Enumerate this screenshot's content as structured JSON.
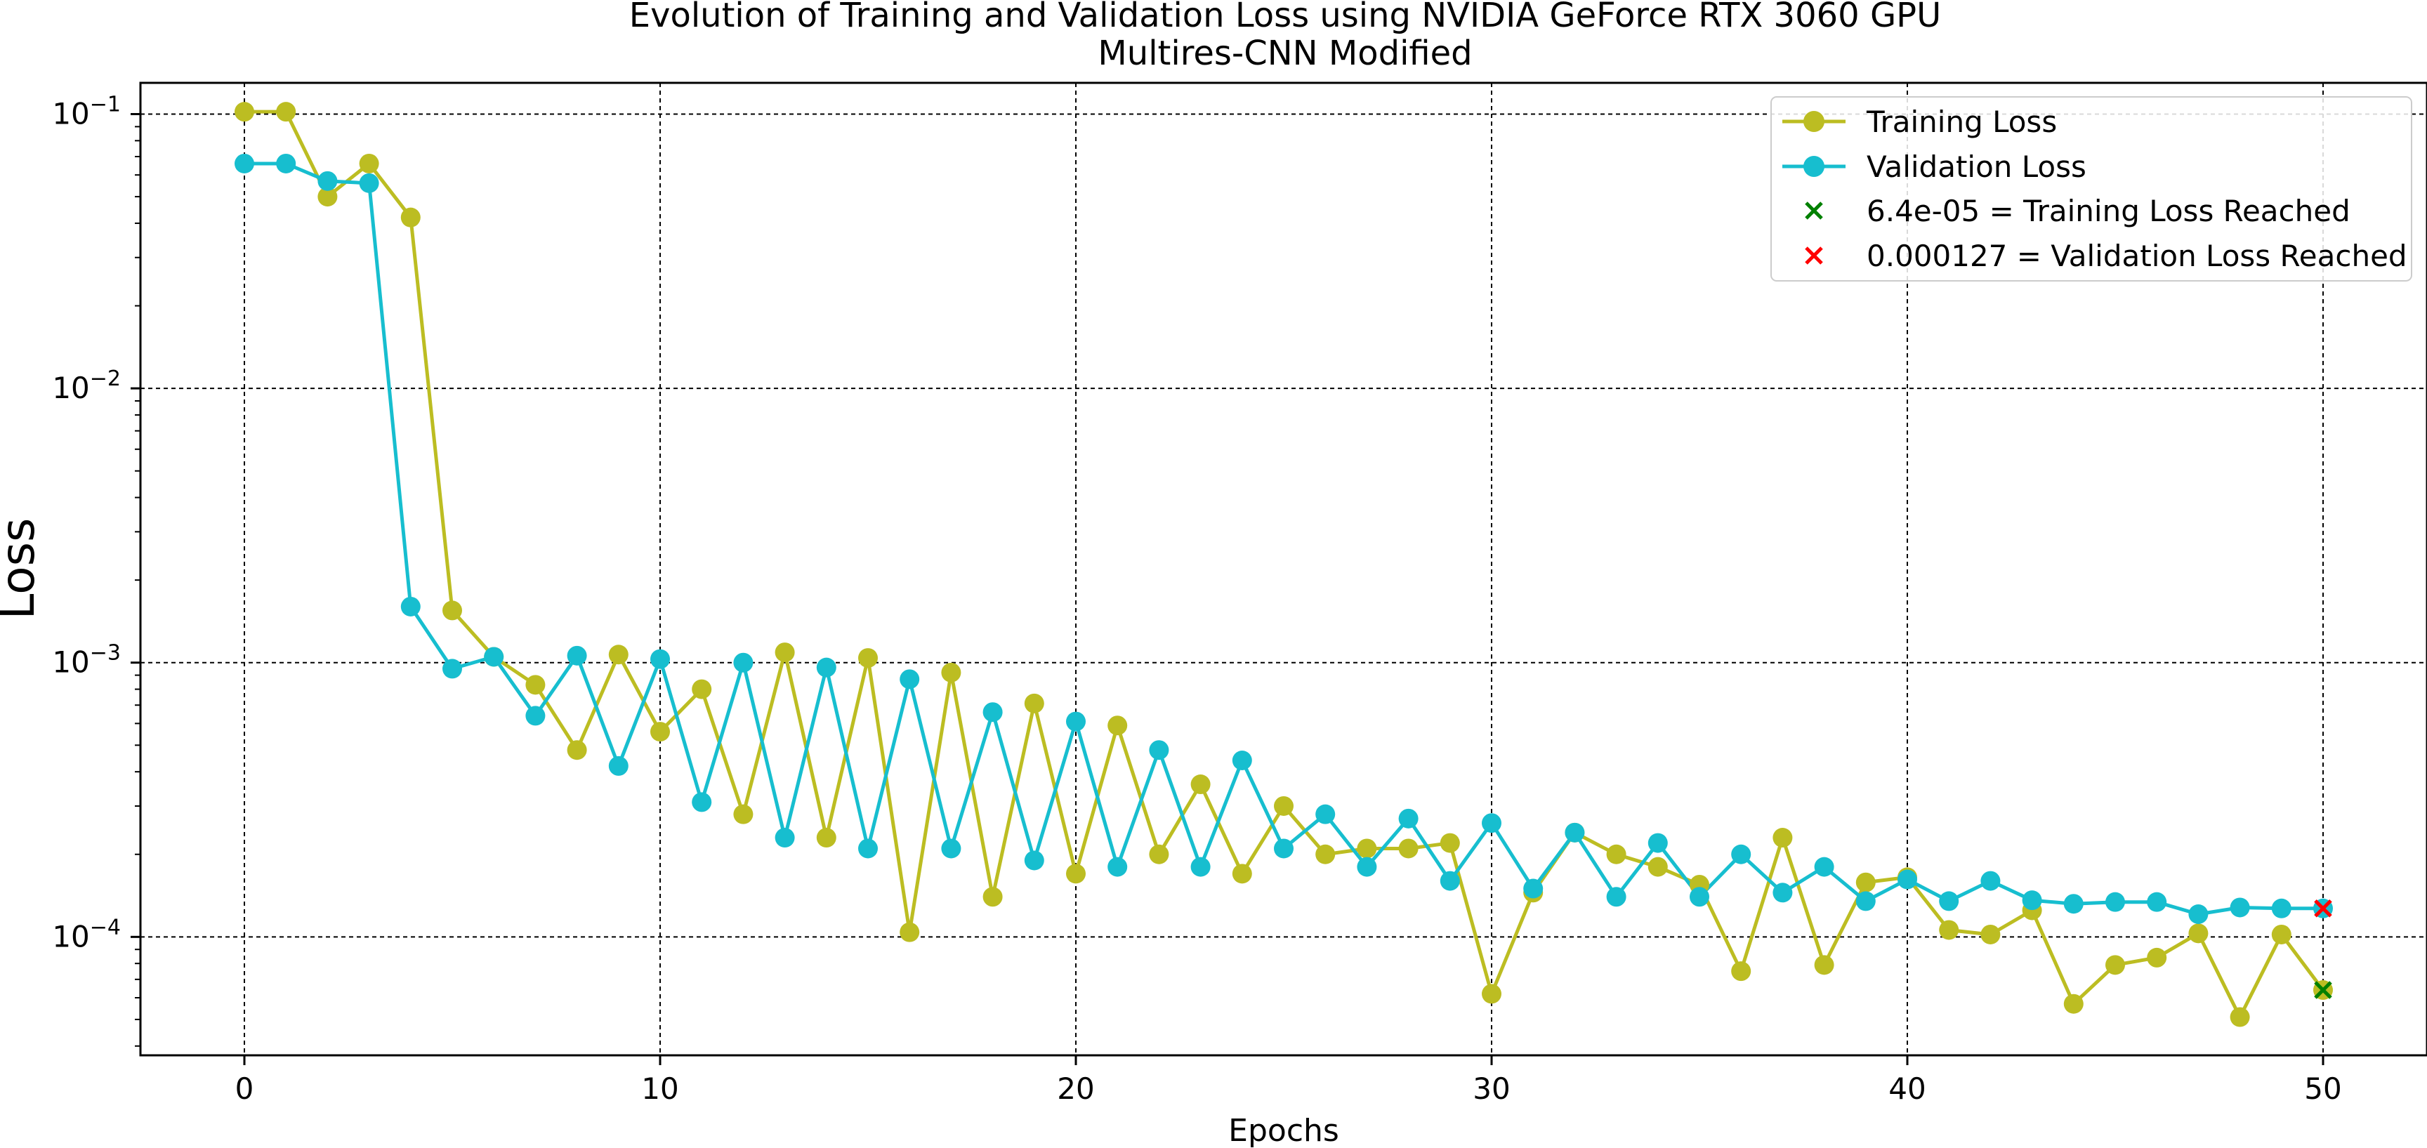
{
  "chart_data": {
    "type": "line",
    "title": "Evolution of Training and Validation Loss using NVIDIA GeForce RTX 3060 GPU",
    "subtitle": "Multires-CNN Modified",
    "xlabel": "Epochs",
    "ylabel": "Loss",
    "xlim": [
      -2.5,
      52.5
    ],
    "ylim": [
      3.7e-05,
      0.13
    ],
    "yscale": "log",
    "grid": true,
    "legend_placement": "top-right",
    "x_ticks": [
      0,
      10,
      20,
      30,
      40,
      50
    ],
    "x_tick_labels": [
      "0",
      "10",
      "20",
      "30",
      "40",
      "50"
    ],
    "y_ticks": [
      0.1,
      0.01,
      0.001,
      0.0001
    ],
    "y_tick_labels": [
      {
        "base": "10",
        "exp": "−1"
      },
      {
        "base": "10",
        "exp": "−2"
      },
      {
        "base": "10",
        "exp": "−3"
      },
      {
        "base": "10",
        "exp": "−4"
      }
    ],
    "x": [
      0,
      1,
      2,
      3,
      4,
      5,
      6,
      7,
      8,
      9,
      10,
      11,
      12,
      13,
      14,
      15,
      16,
      17,
      18,
      19,
      20,
      21,
      22,
      23,
      24,
      25,
      26,
      27,
      28,
      29,
      30,
      31,
      32,
      33,
      34,
      35,
      36,
      37,
      38,
      39,
      40,
      41,
      42,
      43,
      44,
      45,
      46,
      47,
      48,
      49,
      50
    ],
    "series": [
      {
        "name": "Training Loss",
        "color": "#bcbd22",
        "values": [
          0.102,
          0.102,
          0.05,
          0.066,
          0.042,
          0.00155,
          0.00105,
          0.00083,
          0.00048,
          0.00107,
          0.00056,
          0.0008,
          0.00028,
          0.00109,
          0.00023,
          0.00104,
          0.000104,
          0.00092,
          0.00014,
          0.00071,
          0.00017,
          0.00059,
          0.0002,
          0.00036,
          0.00017,
          0.0003,
          0.0002,
          0.00021,
          0.00021,
          0.00022,
          6.2e-05,
          0.000145,
          0.00024,
          0.0002,
          0.00018,
          0.000155,
          7.5e-05,
          0.00023,
          7.9e-05,
          0.000158,
          0.000165,
          0.000106,
          0.000102,
          0.000125,
          5.7e-05,
          7.9e-05,
          8.4e-05,
          0.000103,
          5.1e-05,
          0.000102,
          6.4e-05
        ]
      },
      {
        "name": "Validation Loss",
        "color": "#17becf",
        "values": [
          0.066,
          0.066,
          0.057,
          0.056,
          0.0016,
          0.00095,
          0.00105,
          0.00064,
          0.00106,
          0.00042,
          0.00103,
          0.00031,
          0.001,
          0.00023,
          0.00096,
          0.00021,
          0.00087,
          0.00021,
          0.00066,
          0.00019,
          0.00061,
          0.00018,
          0.00048,
          0.00018,
          0.00044,
          0.00021,
          0.00028,
          0.00018,
          0.00027,
          0.00016,
          0.00026,
          0.00015,
          0.00024,
          0.00014,
          0.00022,
          0.00014,
          0.0002,
          0.000145,
          0.00018,
          0.000135,
          0.000162,
          0.000135,
          0.00016,
          0.000136,
          0.000132,
          0.000134,
          0.000134,
          0.000121,
          0.000128,
          0.000127,
          0.000127
        ]
      }
    ],
    "markers": [
      {
        "label": "6.4e-05 = Training Loss Reached",
        "x": 50,
        "y": 6.4e-05,
        "color": "#008000",
        "shape": "x"
      },
      {
        "label": "0.000127 = Validation Loss Reached",
        "x": 50,
        "y": 0.000127,
        "color": "#ff0000",
        "shape": "x"
      }
    ]
  }
}
